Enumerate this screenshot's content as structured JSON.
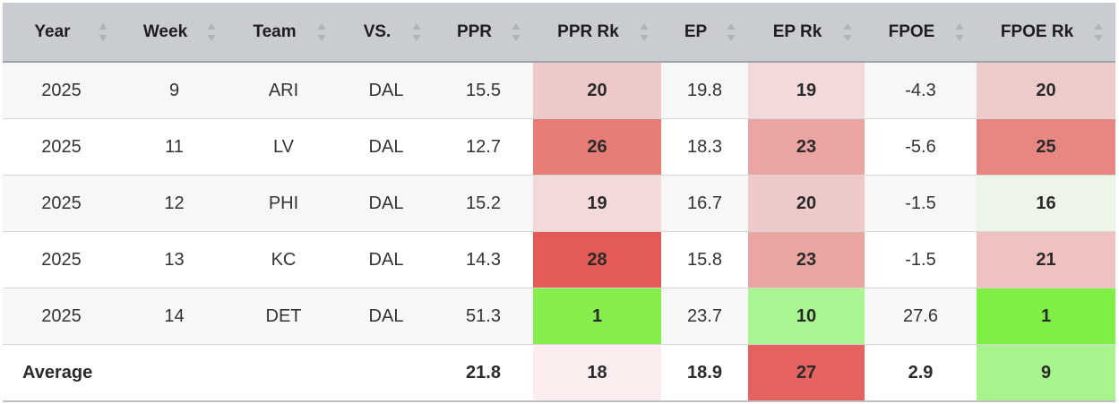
{
  "columns": [
    {
      "key": "year",
      "label": "Year"
    },
    {
      "key": "week",
      "label": "Week"
    },
    {
      "key": "team",
      "label": "Team"
    },
    {
      "key": "vs",
      "label": "VS."
    },
    {
      "key": "ppr",
      "label": "PPR"
    },
    {
      "key": "ppr_rk",
      "label": "PPR Rk"
    },
    {
      "key": "ep",
      "label": "EP"
    },
    {
      "key": "ep_rk",
      "label": "EP Rk"
    },
    {
      "key": "fpoe",
      "label": "FPOE"
    },
    {
      "key": "fpoe_rk",
      "label": "FPOE Rk"
    }
  ],
  "rows": [
    {
      "year": "2025",
      "week": "9",
      "team": "ARI",
      "vs": "DAL",
      "ppr": "15.5",
      "ppr_rk": "20",
      "ep": "19.8",
      "ep_rk": "19",
      "fpoe": "-4.3",
      "fpoe_rk": "20"
    },
    {
      "year": "2025",
      "week": "11",
      "team": "LV",
      "vs": "DAL",
      "ppr": "12.7",
      "ppr_rk": "26",
      "ep": "18.3",
      "ep_rk": "23",
      "fpoe": "-5.6",
      "fpoe_rk": "25"
    },
    {
      "year": "2025",
      "week": "12",
      "team": "PHI",
      "vs": "DAL",
      "ppr": "15.2",
      "ppr_rk": "19",
      "ep": "16.7",
      "ep_rk": "20",
      "fpoe": "-1.5",
      "fpoe_rk": "16"
    },
    {
      "year": "2025",
      "week": "13",
      "team": "KC",
      "vs": "DAL",
      "ppr": "14.3",
      "ppr_rk": "28",
      "ep": "15.8",
      "ep_rk": "23",
      "fpoe": "-1.5",
      "fpoe_rk": "21"
    },
    {
      "year": "2025",
      "week": "14",
      "team": "DET",
      "vs": "DAL",
      "ppr": "51.3",
      "ppr_rk": "1",
      "ep": "23.7",
      "ep_rk": "10",
      "fpoe": "27.6",
      "fpoe_rk": "1"
    }
  ],
  "average": {
    "label": "Average",
    "ppr": "21.8",
    "ppr_rk": "18",
    "ep": "18.9",
    "ep_rk": "27",
    "fpoe": "2.9",
    "fpoe_rk": "9"
  },
  "rank_colors": {
    "rows": [
      {
        "ppr_rk": "#edc9c9",
        "ep_rk": "#f2dada",
        "fpoe_rk": "#eecbcb"
      },
      {
        "ppr_rk": "#e77c76",
        "ep_rk": "#eaa5a3",
        "fpoe_rk": "#e88782"
      },
      {
        "ppr_rk": "#f2dada",
        "ep_rk": "#edc9c9",
        "fpoe_rk": "#ecf5e8"
      },
      {
        "ppr_rk": "#e45a55",
        "ep_rk": "#eaa5a3",
        "fpoe_rk": "#f0c1c1"
      },
      {
        "ppr_rk": "#85ee4c",
        "ep_rk": "#a9f591",
        "fpoe_rk": "#80ef45"
      }
    ],
    "average": {
      "ppr_rk": "#fbeded",
      "ep_rk": "#e4635e",
      "fpoe_rk": "#a7f48c"
    }
  }
}
